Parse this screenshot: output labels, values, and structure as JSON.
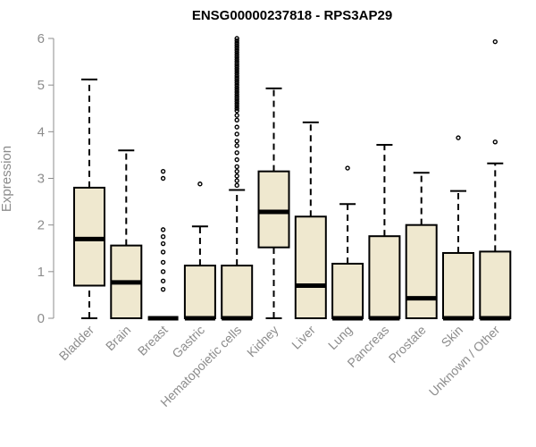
{
  "chart_data": {
    "type": "boxplot",
    "title": "ENSG00000237818 - RPS3AP29",
    "xlabel": "",
    "ylabel": "Expression",
    "ylim": [
      0,
      6
    ],
    "yticks": [
      0,
      1,
      2,
      3,
      4,
      5,
      6
    ],
    "box_color": "#efe8cf",
    "outline_color": "#000000",
    "axis_color": "#8c8c8c",
    "categories": [
      "Bladder",
      "Brain",
      "Breast",
      "Gastric",
      "Hematopoietic cells",
      "Kidney",
      "Liver",
      "Lung",
      "Pancreas",
      "Prostate",
      "Skin",
      "Unknown / Other"
    ],
    "boxes": [
      {
        "whisker_low": 0,
        "q1": 0.7,
        "median": 1.7,
        "q3": 2.8,
        "whisker_high": 5.12,
        "outliers": []
      },
      {
        "whisker_low": 0,
        "q1": 0,
        "median": 0.77,
        "q3": 1.56,
        "whisker_high": 3.6,
        "outliers": []
      },
      {
        "whisker_low": 0,
        "q1": 0,
        "median": 0,
        "q3": 0,
        "whisker_high": 0,
        "outliers": [
          0.62,
          0.8,
          1.0,
          1.2,
          1.42,
          1.6,
          1.75,
          1.9,
          3.0,
          3.15
        ]
      },
      {
        "whisker_low": 0,
        "q1": 0,
        "median": 0,
        "q3": 1.13,
        "whisker_high": 1.97,
        "outliers": [
          2.88
        ]
      },
      {
        "whisker_low": 0,
        "q1": 0,
        "median": 0,
        "q3": 1.13,
        "whisker_high": 2.75,
        "outliers": [
          2.85,
          2.95,
          3.05,
          3.15,
          3.25,
          3.4,
          3.55,
          3.7,
          3.8,
          3.95,
          4.1,
          4.25,
          4.35,
          4.45,
          4.5,
          4.55,
          4.6,
          4.65,
          4.7,
          4.75,
          4.8,
          4.85,
          4.9,
          4.95,
          5.0,
          5.05,
          5.1,
          5.15,
          5.2,
          5.25,
          5.3,
          5.35,
          5.4,
          5.45,
          5.5,
          5.55,
          5.6,
          5.65,
          5.7,
          5.75,
          5.8,
          5.85,
          5.9,
          5.95,
          6.0
        ]
      },
      {
        "whisker_low": 0,
        "q1": 1.52,
        "median": 2.28,
        "q3": 3.15,
        "whisker_high": 4.93,
        "outliers": []
      },
      {
        "whisker_low": 0,
        "q1": 0,
        "median": 0.7,
        "q3": 2.18,
        "whisker_high": 4.2,
        "outliers": []
      },
      {
        "whisker_low": 0,
        "q1": 0,
        "median": 0,
        "q3": 1.17,
        "whisker_high": 2.45,
        "outliers": [
          3.22
        ]
      },
      {
        "whisker_low": 0,
        "q1": 0,
        "median": 0,
        "q3": 1.76,
        "whisker_high": 3.72,
        "outliers": []
      },
      {
        "whisker_low": 0,
        "q1": 0,
        "median": 0.43,
        "q3": 2.0,
        "whisker_high": 3.12,
        "outliers": []
      },
      {
        "whisker_low": 0,
        "q1": 0,
        "median": 0,
        "q3": 1.4,
        "whisker_high": 2.73,
        "outliers": [
          3.87
        ]
      },
      {
        "whisker_low": 0,
        "q1": 0,
        "median": 0,
        "q3": 1.43,
        "whisker_high": 3.32,
        "outliers": [
          3.78,
          5.93
        ]
      }
    ]
  }
}
